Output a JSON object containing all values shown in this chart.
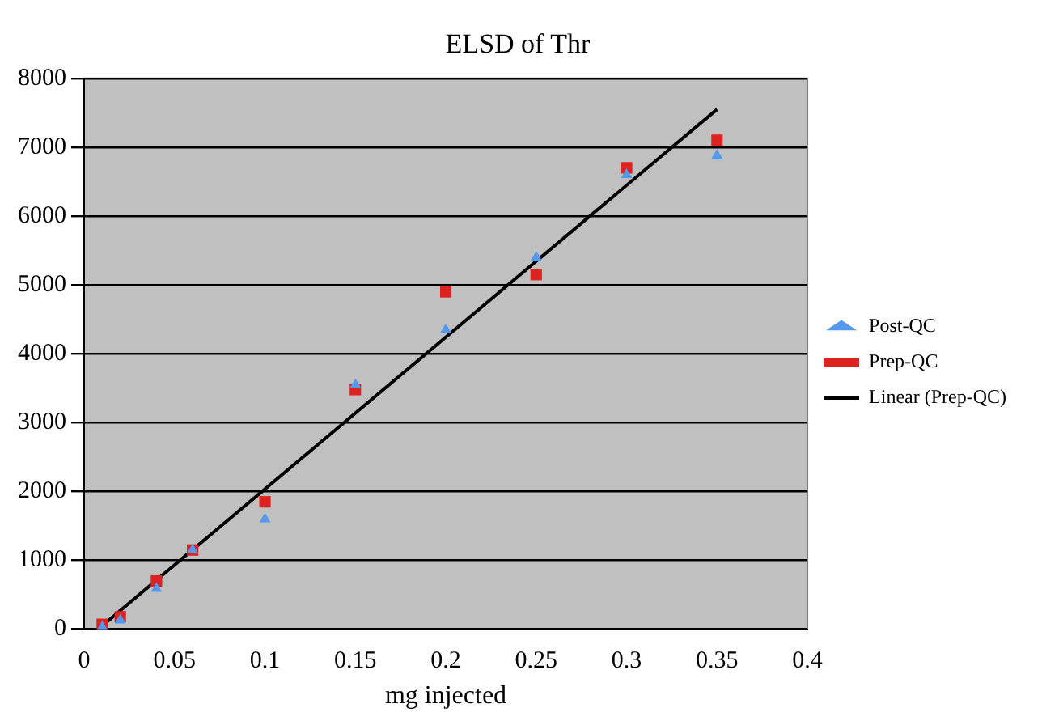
{
  "chart_data": {
    "type": "scatter",
    "title": "ELSD of Thr",
    "xlabel": "mg injected",
    "xlim": [
      0,
      0.4
    ],
    "xticks": [
      0,
      0.05,
      0.1,
      0.15,
      0.2,
      0.25,
      0.3,
      0.35,
      0.4
    ],
    "ylim": [
      0,
      8000
    ],
    "yticks": [
      0,
      1000,
      2000,
      3000,
      4000,
      5000,
      6000,
      7000,
      8000
    ],
    "grid": "y",
    "legend": "right",
    "series": [
      {
        "name": "Post-QC",
        "color": "#5599ee",
        "marker": "triangle",
        "x": [
          0.01,
          0.02,
          0.04,
          0.06,
          0.1,
          0.15,
          0.2,
          0.25,
          0.3,
          0.35
        ],
        "values": [
          30,
          130,
          590,
          1150,
          1600,
          3550,
          4350,
          5400,
          6600,
          6880
        ]
      },
      {
        "name": "Prep-QC",
        "color": "#dd2222",
        "marker": "square",
        "x": [
          0.01,
          0.02,
          0.04,
          0.06,
          0.1,
          0.15,
          0.2,
          0.25,
          0.3,
          0.35
        ],
        "values": [
          70,
          180,
          700,
          1150,
          1850,
          3480,
          4900,
          5150,
          6700,
          7100
        ]
      },
      {
        "name": "Linear (Prep-QC)",
        "type": "line",
        "color": "#000000",
        "marker": "none",
        "x": [
          0.01,
          0.35
        ],
        "values": [
          50,
          7550
        ]
      }
    ]
  }
}
